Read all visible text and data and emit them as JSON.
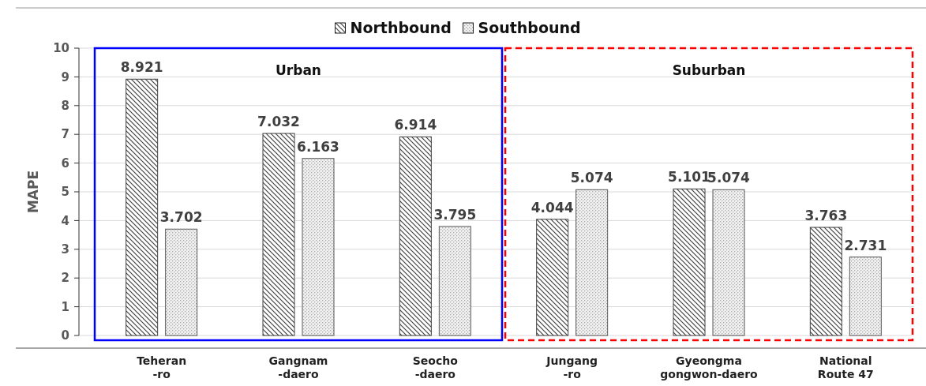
{
  "chart_data": {
    "type": "bar",
    "ylabel": "MAPE",
    "categories": [
      "Teheran\n-ro",
      "Gangnam\n-daero",
      "Seocho\n-daero",
      "Jungang\n-ro",
      "Gyeongma\ngongwon-daero",
      "National\nRoute 47"
    ],
    "series": [
      {
        "name": "Northbound",
        "color": "#404040",
        "values": [
          8.921,
          7.032,
          6.914,
          4.044,
          5.101,
          3.763
        ]
      },
      {
        "name": "Southbound",
        "color": "#595959",
        "values": [
          3.702,
          6.163,
          3.795,
          5.074,
          5.074,
          2.731
        ]
      }
    ],
    "ylim": [
      0,
      10
    ],
    "yticks": [
      0,
      1,
      2,
      3,
      4,
      5,
      6,
      7,
      8,
      9,
      10
    ],
    "grid": "y",
    "legend": "top",
    "data_labels": true,
    "annotations": [
      "Urban",
      "Suburban"
    ]
  }
}
